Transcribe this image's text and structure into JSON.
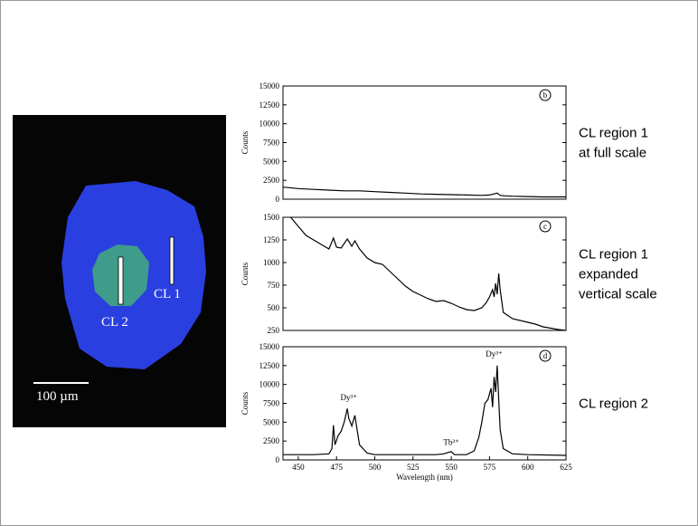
{
  "image": {
    "labels": [
      "CL 1",
      "CL 2"
    ],
    "scale_bar": "100 µm"
  },
  "captions": [
    [
      "CL region 1",
      "at full scale"
    ],
    [
      "CL region 1",
      "expanded",
      "vertical scale"
    ],
    [
      "CL region 2"
    ]
  ],
  "chart_data": [
    {
      "type": "line",
      "panel": "b",
      "ylabel": "Counts",
      "color": "#000000",
      "xlim": [
        440,
        625
      ],
      "ylim": [
        0,
        15000
      ],
      "yticks": [
        0,
        2500,
        5000,
        7500,
        10000,
        12500,
        15000
      ],
      "x": [
        440,
        450,
        460,
        470,
        480,
        490,
        500,
        510,
        520,
        530,
        540,
        550,
        560,
        570,
        575,
        578,
        580,
        582,
        585,
        590,
        600,
        610,
        625
      ],
      "values": [
        1600,
        1400,
        1300,
        1200,
        1100,
        1100,
        1000,
        900,
        800,
        700,
        650,
        600,
        550,
        500,
        550,
        700,
        800,
        500,
        450,
        400,
        350,
        300,
        300
      ]
    },
    {
      "type": "line",
      "panel": "c",
      "ylabel": "Counts",
      "color": "#000000",
      "xlim": [
        440,
        625
      ],
      "ylim": [
        250,
        1500
      ],
      "yticks": [
        250,
        500,
        750,
        1000,
        1250,
        1500
      ],
      "x": [
        445,
        450,
        455,
        460,
        465,
        470,
        473,
        475,
        478,
        482,
        485,
        487,
        490,
        495,
        500,
        505,
        510,
        515,
        520,
        525,
        530,
        535,
        540,
        545,
        550,
        555,
        560,
        565,
        570,
        573,
        575,
        577,
        578,
        579,
        580,
        581,
        582,
        584,
        590,
        600,
        605,
        610,
        620,
        625
      ],
      "values": [
        1500,
        1400,
        1300,
        1250,
        1200,
        1150,
        1270,
        1170,
        1160,
        1260,
        1180,
        1240,
        1150,
        1050,
        1000,
        980,
        900,
        820,
        740,
        680,
        640,
        600,
        570,
        580,
        550,
        510,
        480,
        470,
        500,
        560,
        620,
        700,
        620,
        770,
        650,
        880,
        700,
        450,
        380,
        340,
        320,
        290,
        260,
        250
      ]
    },
    {
      "type": "line",
      "panel": "d",
      "ylabel": "Counts",
      "xlabel": "Wavelength (nm)",
      "color": "#000000",
      "xlim": [
        440,
        625
      ],
      "ylim": [
        0,
        15000
      ],
      "yticks": [
        0,
        2500,
        5000,
        7500,
        10000,
        12500,
        15000
      ],
      "xticks": [
        450,
        475,
        500,
        525,
        550,
        575,
        600,
        625
      ],
      "annotations": [
        "Dy³⁺",
        "Tb³⁺",
        "Dy³⁺"
      ],
      "x": [
        440,
        460,
        470,
        472,
        473,
        474,
        476,
        478,
        480,
        482,
        483,
        485,
        487,
        488,
        490,
        495,
        500,
        540,
        545,
        550,
        552,
        560,
        565,
        568,
        570,
        572,
        574,
        576,
        577,
        578,
        579,
        580,
        581,
        582,
        584,
        590,
        600,
        625
      ],
      "values": [
        700,
        700,
        800,
        1500,
        4600,
        2000,
        3200,
        3800,
        5000,
        6800,
        5500,
        4500,
        5900,
        4600,
        2000,
        900,
        700,
        700,
        800,
        1100,
        700,
        700,
        1200,
        3000,
        5000,
        7500,
        8000,
        9500,
        7000,
        11000,
        9000,
        12500,
        8000,
        4000,
        1500,
        800,
        700,
        600
      ]
    }
  ]
}
